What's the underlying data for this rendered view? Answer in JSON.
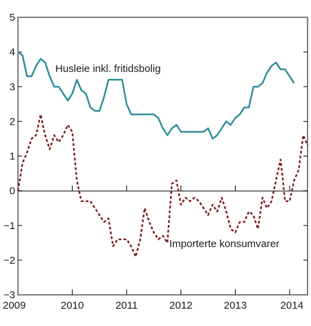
{
  "chart_data": {
    "type": "line",
    "title": "",
    "xlabel": "",
    "ylabel": "",
    "xlim": [
      2009.0,
      2014.33
    ],
    "ylim": [
      -3,
      5
    ],
    "y_ticks": [
      5,
      4,
      3,
      2,
      1,
      0,
      -1,
      -2,
      -3
    ],
    "x_ticks": [
      {
        "value": 2009,
        "label": "2009"
      },
      {
        "value": 2010,
        "label": "2010"
      },
      {
        "value": 2011,
        "label": "2011"
      },
      {
        "value": 2012,
        "label": "2012"
      },
      {
        "value": 2013,
        "label": "2013"
      },
      {
        "value": 2014,
        "label": "2014"
      }
    ],
    "grid": false,
    "legend": "inline labels",
    "series": [
      {
        "name": "Husleie inkl. fritidsbolig",
        "color": "#2a8c99",
        "style": "solid",
        "values": [
          4.0,
          3.9,
          3.3,
          3.3,
          3.6,
          3.8,
          3.7,
          3.3,
          3.0,
          3.0,
          2.8,
          2.6,
          2.8,
          3.2,
          2.9,
          2.8,
          2.4,
          2.3,
          2.3,
          2.7,
          3.2,
          3.2,
          3.2,
          3.2,
          2.5,
          2.2,
          2.2,
          2.2,
          2.2,
          2.2,
          2.2,
          2.1,
          1.8,
          1.6,
          1.8,
          1.9,
          1.7,
          1.7,
          1.7,
          1.7,
          1.7,
          1.7,
          1.8,
          1.5,
          1.6,
          1.8,
          2.0,
          1.9,
          2.1,
          2.2,
          2.4,
          2.4,
          3.0,
          3.0,
          3.1,
          3.4,
          3.6,
          3.7,
          3.5,
          3.5,
          3.3,
          3.1
        ]
      },
      {
        "name": "Importerte konsumvarer",
        "color": "#7a1e1e",
        "style": "dashed",
        "values": [
          0.0,
          0.8,
          1.1,
          1.5,
          1.6,
          2.2,
          1.6,
          1.2,
          1.6,
          1.4,
          1.6,
          1.9,
          1.7,
          0.3,
          -0.3,
          -0.3,
          -0.3,
          -0.5,
          -0.7,
          -0.9,
          -0.8,
          -1.6,
          -1.4,
          -1.4,
          -1.4,
          -1.6,
          -1.9,
          -1.4,
          -0.5,
          -0.9,
          -1.2,
          -1.4,
          -1.3,
          -1.5,
          0.2,
          0.3,
          -0.4,
          -0.2,
          -0.3,
          -0.2,
          -0.3,
          -0.5,
          -0.7,
          -0.4,
          -0.6,
          -0.2,
          -0.6,
          -1.1,
          -1.2,
          -0.9,
          -0.9,
          -0.6,
          -0.7,
          -1.1,
          -0.2,
          -0.5,
          -0.3,
          0.3,
          0.9,
          -0.3,
          -0.3,
          0.3,
          0.6,
          1.6,
          1.3
        ]
      }
    ],
    "annotations": [
      {
        "text": "Husleie inkl. fritidsbolig",
        "series": 0
      },
      {
        "text": "Importerte konsumvarer",
        "series": 1
      }
    ]
  }
}
